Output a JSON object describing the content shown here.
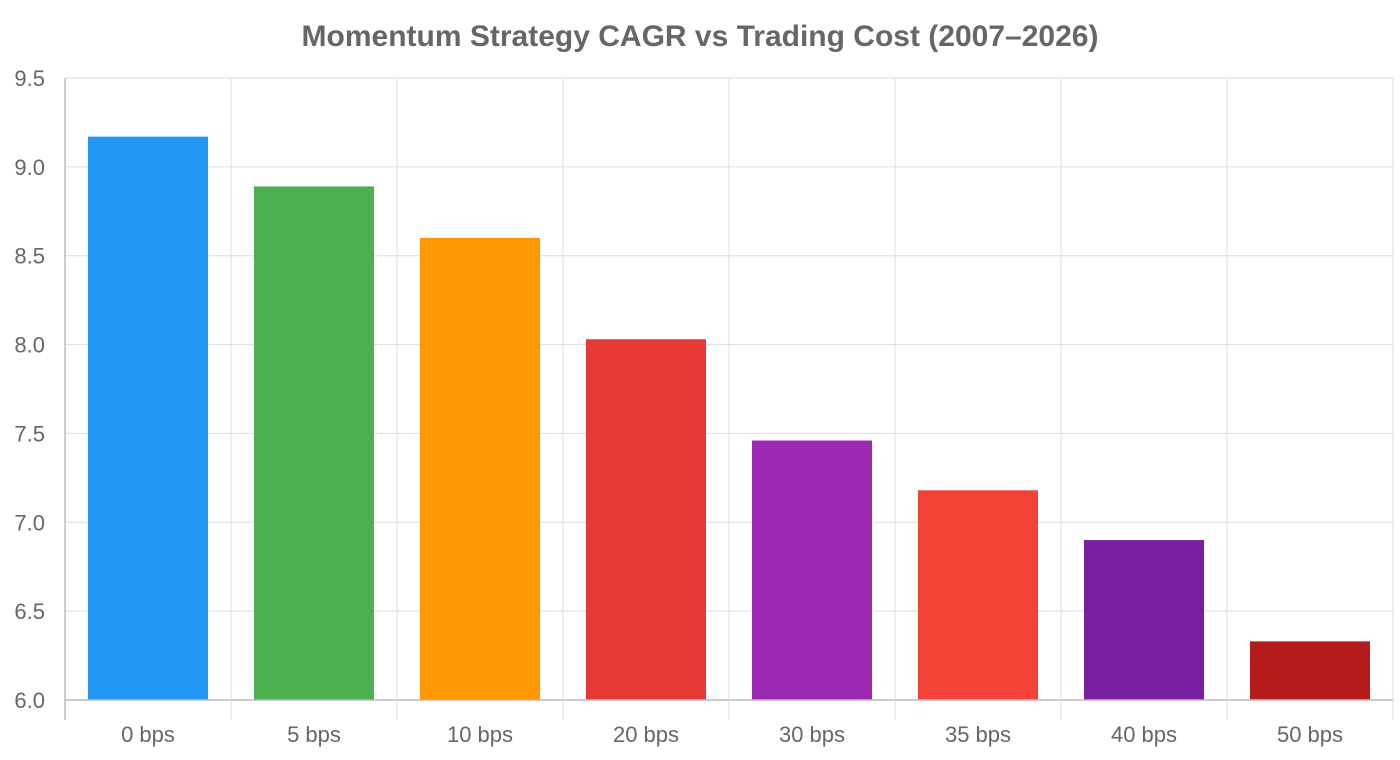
{
  "chart_data": {
    "type": "bar",
    "title": "Momentum Strategy CAGR vs Trading Cost (2007–2026)",
    "xlabel": "",
    "ylabel": "",
    "categories": [
      "0 bps",
      "5 bps",
      "10 bps",
      "20 bps",
      "30 bps",
      "35 bps",
      "40 bps",
      "50 bps"
    ],
    "values": [
      9.17,
      8.89,
      8.6,
      8.03,
      7.46,
      7.18,
      6.9,
      6.33
    ],
    "colors": [
      "#2196F3",
      "#4CAF50",
      "#FF9800",
      "#E53935",
      "#9C27B0",
      "#F44336",
      "#7B1FA2",
      "#B71C1C"
    ],
    "ylim": [
      6.0,
      9.5
    ],
    "yticks": [
      "6.0",
      "6.5",
      "7.0",
      "7.5",
      "8.0",
      "8.5",
      "9.0",
      "9.5"
    ],
    "grid": true,
    "legend": "none"
  }
}
